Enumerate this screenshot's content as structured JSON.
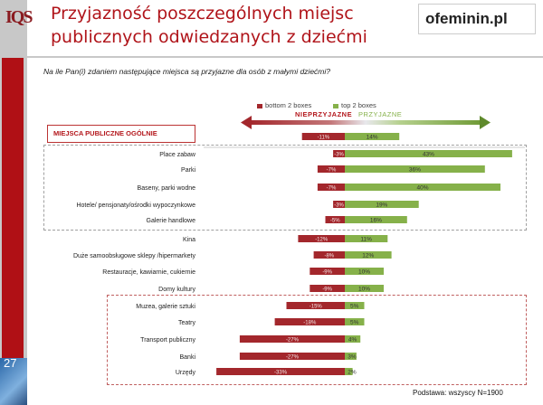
{
  "header": {
    "logo_text": "IQS",
    "title_line1": "Przyjazność  poszczególnych miejsc",
    "title_line2": "publicznych odwiedzanych z dziećmi",
    "brand": "ofeminin.pl"
  },
  "question": "Na ile Pan(i) zdaniem następujące miejsca są przyjazne dla osób z małymi dziećmi?",
  "legend": {
    "bottom": "bottom 2 boxes",
    "top": "top 2 boxes",
    "neg_label": "NIEPRZYJAZNE",
    "pos_label": "PRZYJAZNE",
    "bottom_color": "#a3272c",
    "top_color": "#86b14a"
  },
  "category_header": "MIEJSCA PUBLICZNE OGÓLNIE",
  "footnote": "Podstawa: wszyscy N=1900",
  "slide_number": "27",
  "chart_data": {
    "type": "bar",
    "orientation": "horizontal-diverging",
    "series": [
      {
        "name": "bottom 2 boxes",
        "values": [
          -11,
          -3,
          -7,
          -7,
          -3,
          -5,
          -12,
          -8,
          -9,
          -9,
          -15,
          -18,
          -27,
          -27,
          -33
        ]
      },
      {
        "name": "top 2 boxes",
        "values": [
          14,
          43,
          36,
          40,
          19,
          16,
          11,
          12,
          10,
          10,
          5,
          5,
          4,
          3,
          2
        ]
      }
    ],
    "categories": [
      "",
      "Place zabaw",
      "Parki",
      "Baseny, parki wodne",
      "Hotele/ pensjonaty/ośrodki wypoczynkowe",
      "Galerie handlowe",
      "Kina",
      "Duże samoobsługowe sklepy /hipermarkety",
      "Restauracje, kawiarnie, cukiernie",
      "Domy kultury",
      "Muzea, galerie sztuki",
      "Teatry",
      "Transport publiczny",
      "Banki",
      "Urzędy"
    ],
    "value_labels_bottom": [
      "-11%",
      "-3%",
      "-7%",
      "-7%",
      "-3%",
      "-5%",
      "-12%",
      "-8%",
      "-9%",
      "-9%",
      "-15%",
      "-18%",
      "-27%",
      "-27%",
      "-33%"
    ],
    "value_labels_top": [
      "14%",
      "43%",
      "36%",
      "40%",
      "19%",
      "16%",
      "11%",
      "12%",
      "10%",
      "10%",
      "5%",
      "5%",
      "4%",
      "3%",
      "2%"
    ],
    "xlim": [
      -35,
      45
    ],
    "grid": false
  }
}
